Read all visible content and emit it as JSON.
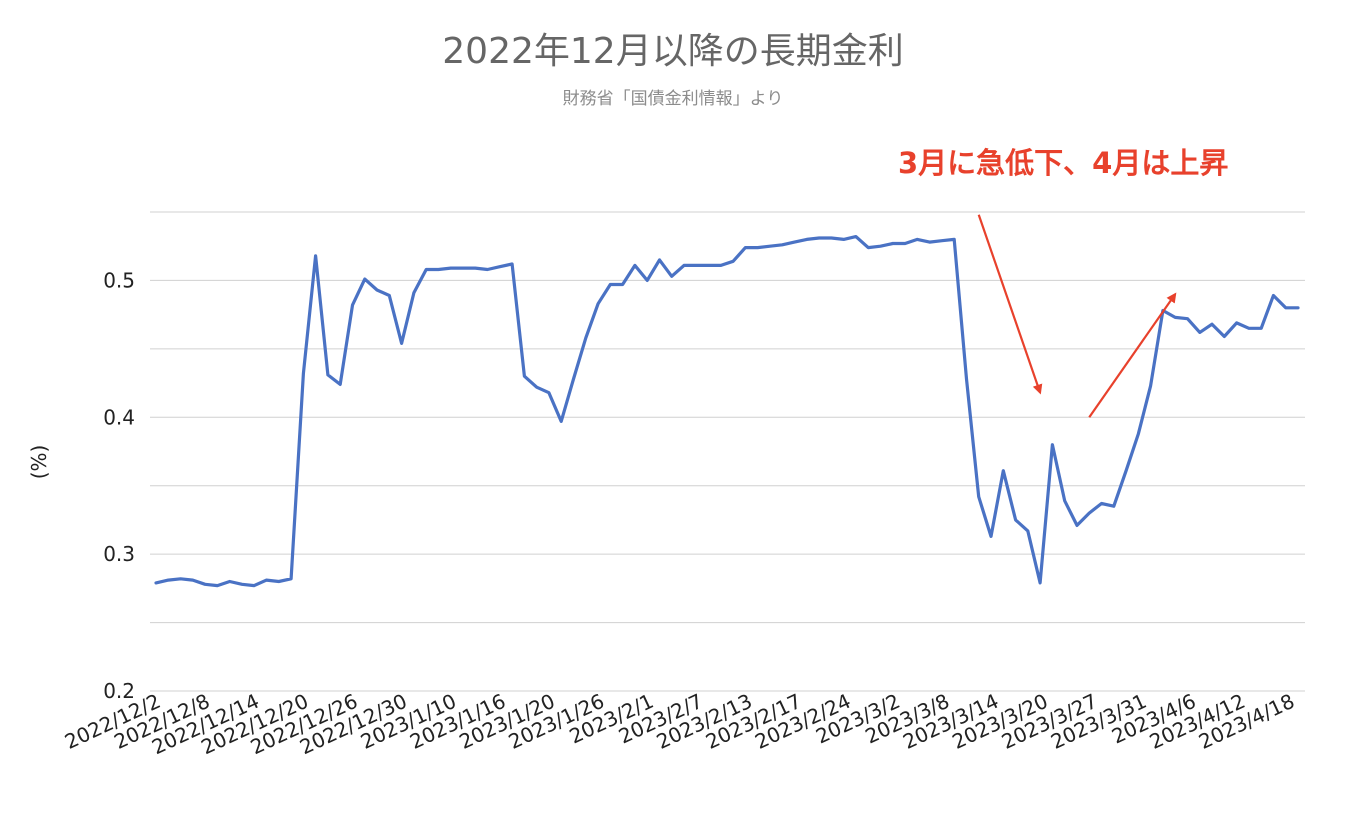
{
  "title": "2022年12月以降の長期金利",
  "subtitle": "財務省「国債金利情報」より",
  "annotation": "3月に急低下、4月は上昇",
  "colors": {
    "line": "#4a72c4",
    "arrow": "#e8412c",
    "grid": "#d0d0d0"
  },
  "chart_data": {
    "type": "line",
    "title": "2022年12月以降の長期金利",
    "subtitle": "財務省「国債金利情報」より",
    "ylabel": "(%)",
    "xlabel": "",
    "ylim": [
      0.2,
      0.55
    ],
    "yticks": [
      "0.2",
      "0.3",
      "0.4",
      "0.5"
    ],
    "grid": true,
    "x_tick_labels": [
      "2022/12/2",
      "2022/12/8",
      "2022/12/14",
      "2022/12/20",
      "2022/12/26",
      "2022/12/30",
      "2023/1/10",
      "2023/1/16",
      "2023/1/20",
      "2023/1/26",
      "2023/2/1",
      "2023/2/7",
      "2023/2/13",
      "2023/2/17",
      "2023/2/24",
      "2023/3/2",
      "2023/3/8",
      "2023/3/14",
      "2023/3/20",
      "2023/3/27",
      "2023/3/31",
      "2023/4/6",
      "2023/4/12",
      "2023/4/18"
    ],
    "series": [
      {
        "values": [
          0.279,
          0.281,
          0.282,
          0.281,
          0.278,
          0.277,
          0.28,
          0.278,
          0.277,
          0.281,
          0.28,
          0.282,
          0.432,
          0.518,
          0.431,
          0.424,
          0.482,
          0.501,
          0.493,
          0.489,
          0.454,
          0.491,
          0.508,
          0.508,
          0.509,
          0.509,
          0.509,
          0.508,
          0.51,
          0.512,
          0.43,
          0.422,
          0.418,
          0.397,
          0.428,
          0.458,
          0.483,
          0.497,
          0.497,
          0.511,
          0.5,
          0.515,
          0.503,
          0.511,
          0.511,
          0.511,
          0.511,
          0.514,
          0.524,
          0.524,
          0.525,
          0.526,
          0.528,
          0.53,
          0.531,
          0.531,
          0.53,
          0.532,
          0.524,
          0.525,
          0.527,
          0.527,
          0.53,
          0.528,
          0.529,
          0.53,
          0.428,
          0.342,
          0.313,
          0.361,
          0.325,
          0.317,
          0.279,
          0.38,
          0.339,
          0.321,
          0.33,
          0.337,
          0.335,
          0.361,
          0.388,
          0.423,
          0.478,
          0.473,
          0.472,
          0.462,
          0.468,
          0.459,
          0.469,
          0.465,
          0.465,
          0.489,
          0.48,
          0.48
        ]
      }
    ],
    "arrows": [
      {
        "from": {
          "x_index": 67,
          "y": 0.548
        },
        "to": {
          "x_index": 72,
          "y": 0.418
        }
      },
      {
        "from": {
          "x_index": 76,
          "y": 0.4
        },
        "to": {
          "x_index": 83,
          "y": 0.49
        }
      }
    ]
  }
}
